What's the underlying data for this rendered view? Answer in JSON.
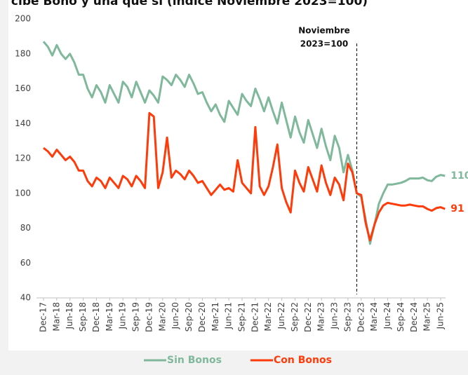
{
  "chart_data": {
    "type": "line",
    "title": "cibe Bono y una que sí (índice Noviembre 2023=100)",
    "annotation": [
      "Noviembre",
      "2023=100"
    ],
    "categories": [
      "Dec-17",
      null,
      null,
      "Mar-18",
      null,
      null,
      "Jun-18",
      null,
      null,
      "Sep-18",
      null,
      null,
      "Dec-18",
      null,
      null,
      "Mar-19",
      null,
      null,
      "Jun-19",
      null,
      null,
      "Sep-19",
      null,
      null,
      "Dec-19",
      null,
      null,
      "Mar-20",
      null,
      null,
      "Jun-20",
      null,
      null,
      "Sep-20",
      null,
      null,
      "Dec-20",
      null,
      null,
      "Mar-21",
      null,
      null,
      "Jun-21",
      null,
      null,
      "Sep-21",
      null,
      null,
      "Dec-21",
      null,
      null,
      "Mar-22",
      null,
      null,
      "Jun-22",
      null,
      null,
      "Sep-22",
      null,
      null,
      "Dec-22",
      null,
      null,
      "Mar-23",
      null,
      null,
      "Jun-23",
      null,
      null,
      "Sep-23",
      null,
      null,
      "Dec-23",
      null,
      null,
      "Mar-24",
      null,
      null,
      "Jun-24",
      null,
      null,
      "Sep-24",
      null,
      null,
      "Dec-24",
      null,
      null,
      "Mar-25",
      null,
      null,
      "Jun-25",
      null
    ],
    "series": [
      {
        "name": "Sin Bonos",
        "color": "#7fb89b",
        "values": [
          187,
          184,
          179,
          185,
          180,
          177,
          180,
          175,
          168,
          168,
          160,
          155,
          162,
          158,
          152,
          162,
          157,
          152,
          164,
          161,
          155,
          164,
          158,
          152,
          159,
          156,
          152,
          167,
          165,
          162,
          168,
          165,
          161,
          168,
          163,
          157,
          158,
          152,
          147,
          151,
          145,
          141,
          153,
          149,
          145,
          157,
          153,
          150,
          160,
          154,
          147,
          155,
          147,
          140,
          152,
          142,
          132,
          144,
          135,
          129,
          142,
          134,
          126,
          137,
          127,
          119,
          133,
          126,
          112,
          122,
          113,
          100,
          98,
          85,
          71,
          82,
          94,
          100,
          105,
          105,
          105.5,
          106,
          107,
          108.5,
          108.5,
          108.5,
          109,
          107.5,
          107,
          109.5,
          110.5,
          110
        ]
      },
      {
        "name": "Con Bonos",
        "color": "#ff3b0a",
        "values": [
          126,
          124,
          121,
          125,
          122,
          119,
          121,
          118,
          113,
          113,
          107,
          104,
          109,
          107,
          103,
          109,
          106,
          103,
          110,
          108,
          104,
          110,
          107,
          103,
          146,
          144,
          103,
          112,
          132,
          109,
          113,
          111,
          108,
          113,
          110,
          106,
          107,
          103,
          99,
          102,
          105,
          102,
          103,
          101,
          119,
          106,
          103,
          100,
          138,
          104,
          99,
          104,
          115,
          128,
          103,
          95,
          89,
          113,
          106,
          101,
          115,
          108,
          101,
          116,
          106,
          99,
          109,
          105,
          96,
          117,
          112,
          100,
          99,
          83,
          73,
          82,
          89,
          93,
          94.5,
          94,
          93.5,
          93,
          93,
          93.5,
          93,
          92.5,
          92.5,
          91,
          90,
          91.5,
          92,
          91
        ]
      }
    ],
    "ylim": [
      40,
      200
    ],
    "yticks": [
      40,
      60,
      80,
      100,
      120,
      140,
      160,
      180,
      200
    ],
    "grid": false,
    "legend": "bottom"
  }
}
